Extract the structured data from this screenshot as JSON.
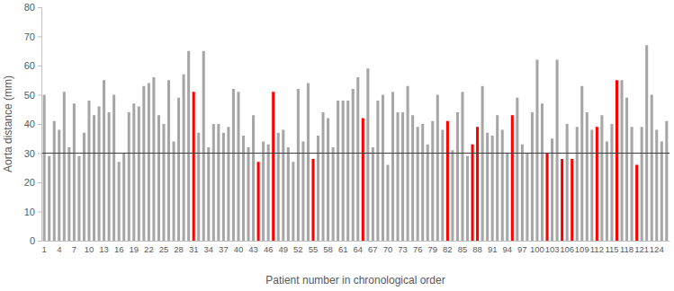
{
  "chart_data": {
    "type": "bar",
    "x_label": "Patient number in chronological order",
    "y_label": "Aorta distance (mm)",
    "categories": [
      "1",
      null,
      null,
      "4",
      null,
      null,
      "7",
      null,
      null,
      "10",
      null,
      null,
      "13",
      null,
      null,
      "16",
      null,
      null,
      "19",
      null,
      null,
      "22",
      null,
      null,
      "25",
      null,
      null,
      "28",
      null,
      null,
      "31",
      null,
      null,
      "34",
      null,
      null,
      "37",
      null,
      null,
      "40",
      null,
      null,
      "43",
      null,
      null,
      "46",
      null,
      null,
      "49",
      null,
      null,
      "52",
      null,
      null,
      "55",
      null,
      null,
      "58",
      null,
      null,
      "61",
      null,
      null,
      "64",
      null,
      null,
      "67",
      null,
      null,
      "70",
      null,
      null,
      "73",
      null,
      null,
      "76",
      null,
      null,
      "79",
      null,
      null,
      "82",
      null,
      null,
      "85",
      null,
      null,
      "88",
      null,
      null,
      "91",
      null,
      null,
      "94",
      null,
      null,
      "97",
      null,
      null,
      "100",
      null,
      null,
      "103",
      null,
      null,
      "106",
      null,
      null,
      "109",
      null,
      null,
      "112",
      null,
      null,
      "115",
      null,
      null,
      "118",
      null,
      null,
      "121",
      null,
      null,
      "124",
      null,
      null
    ],
    "values": [
      50,
      29,
      41,
      38,
      51,
      32,
      47,
      29,
      37,
      48,
      43,
      46,
      55,
      44,
      50,
      27,
      30,
      44,
      47,
      46,
      53,
      54,
      56,
      43,
      40,
      55,
      34,
      49,
      57,
      65,
      51,
      37,
      65,
      32,
      40,
      40,
      37,
      39,
      52,
      51,
      36,
      32,
      43,
      27,
      34,
      33,
      51,
      37,
      38,
      32,
      27,
      52,
      34,
      54,
      28,
      36,
      44,
      42,
      32,
      48,
      48,
      48,
      52,
      56,
      42,
      59,
      32,
      48,
      50,
      26,
      51,
      44,
      44,
      53,
      43,
      39,
      40,
      33,
      41,
      50,
      38,
      41,
      31,
      44,
      51,
      29,
      33,
      39,
      53,
      37,
      36,
      43,
      38,
      30,
      43,
      49,
      33,
      30,
      44,
      62,
      47,
      30,
      35,
      62,
      28,
      40,
      28,
      39,
      53,
      44,
      38,
      39,
      43,
      34,
      40,
      55,
      55,
      49,
      39,
      26,
      39,
      67,
      50,
      38,
      34,
      41
    ],
    "colors": [
      "#a6a6a6",
      "#a6a6a6",
      "#a6a6a6",
      "#a6a6a6",
      "#a6a6a6",
      "#a6a6a6",
      "#a6a6a6",
      "#a6a6a6",
      "#a6a6a6",
      "#a6a6a6",
      "#a6a6a6",
      "#a6a6a6",
      "#a6a6a6",
      "#a6a6a6",
      "#a6a6a6",
      "#a6a6a6",
      "#a6a6a6",
      "#a6a6a6",
      "#a6a6a6",
      "#a6a6a6",
      "#a6a6a6",
      "#a6a6a6",
      "#a6a6a6",
      "#a6a6a6",
      "#a6a6a6",
      "#a6a6a6",
      "#a6a6a6",
      "#a6a6a6",
      "#a6a6a6",
      "#a6a6a6",
      "#ff0000",
      "#a6a6a6",
      "#a6a6a6",
      "#a6a6a6",
      "#a6a6a6",
      "#a6a6a6",
      "#a6a6a6",
      "#a6a6a6",
      "#a6a6a6",
      "#a6a6a6",
      "#a6a6a6",
      "#a6a6a6",
      "#a6a6a6",
      "#ff0000",
      "#a6a6a6",
      "#a6a6a6",
      "#ff0000",
      "#a6a6a6",
      "#a6a6a6",
      "#a6a6a6",
      "#a6a6a6",
      "#a6a6a6",
      "#a6a6a6",
      "#a6a6a6",
      "#ff0000",
      "#a6a6a6",
      "#a6a6a6",
      "#a6a6a6",
      "#a6a6a6",
      "#a6a6a6",
      "#a6a6a6",
      "#a6a6a6",
      "#a6a6a6",
      "#a6a6a6",
      "#ff0000",
      "#a6a6a6",
      "#a6a6a6",
      "#a6a6a6",
      "#a6a6a6",
      "#a6a6a6",
      "#a6a6a6",
      "#a6a6a6",
      "#a6a6a6",
      "#a6a6a6",
      "#a6a6a6",
      "#a6a6a6",
      "#a6a6a6",
      "#a6a6a6",
      "#a6a6a6",
      "#a6a6a6",
      "#a6a6a6",
      "#ff0000",
      "#a6a6a6",
      "#a6a6a6",
      "#a6a6a6",
      "#a6a6a6",
      "#ff0000",
      "#ff0000",
      "#a6a6a6",
      "#a6a6a6",
      "#a6a6a6",
      "#a6a6a6",
      "#a6a6a6",
      "#a6a6a6",
      "#ff0000",
      "#a6a6a6",
      "#a6a6a6",
      "#a6a6a6",
      "#a6a6a6",
      "#a6a6a6",
      "#a6a6a6",
      "#ff0000",
      "#a6a6a6",
      "#a6a6a6",
      "#ff0000",
      "#a6a6a6",
      "#ff0000",
      "#a6a6a6",
      "#a6a6a6",
      "#a6a6a6",
      "#a6a6a6",
      "#ff0000",
      "#a6a6a6",
      "#a6a6a6",
      "#a6a6a6",
      "#ff0000",
      "#a6a6a6",
      "#a6a6a6",
      "#a6a6a6",
      "#ff0000",
      "#a6a6a6",
      "#a6a6a6",
      "#a6a6a6",
      "#a6a6a6",
      "#a6a6a6",
      "#a6a6a6"
    ],
    "reference_line": 30,
    "ylim": [
      0,
      80
    ],
    "yticks": [
      0,
      10,
      20,
      30,
      40,
      50,
      60,
      70,
      80
    ],
    "grid": false
  }
}
